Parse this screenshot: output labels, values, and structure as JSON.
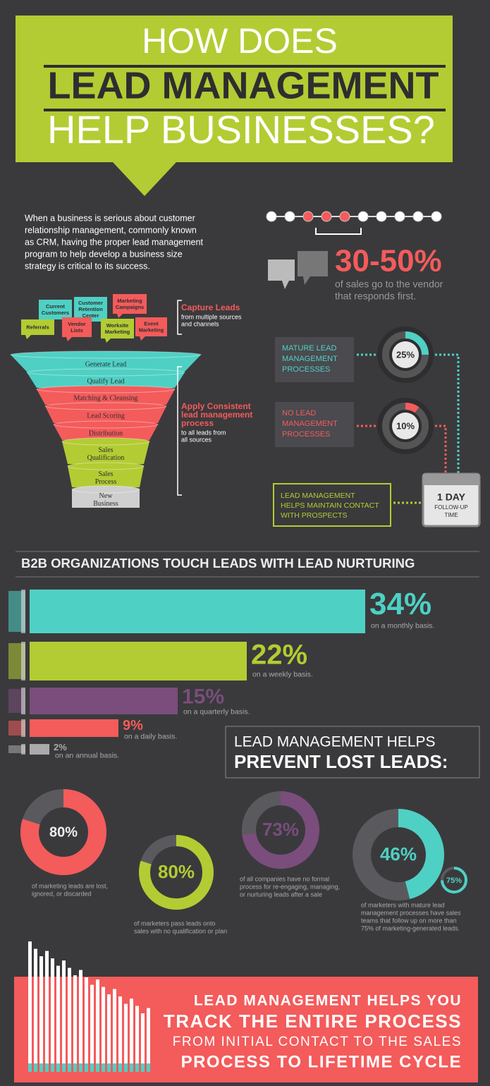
{
  "header": {
    "line1": "HOW DOES",
    "line2": "LEAD MANAGEMENT",
    "line3": "HELP BUSINESSES?"
  },
  "intro": [
    "When a business is serious about customer",
    "relationship management, commonly known",
    "as CRM, having the proper lead management",
    "program to help develop a business size",
    "strategy is critical to its success."
  ],
  "response": {
    "value": "30-50%",
    "caption": [
      "of sales go to the vendor",
      "that responds first."
    ]
  },
  "funnel": {
    "tags": [
      {
        "lines": [
          "Current",
          "Customers"
        ]
      },
      {
        "lines": [
          "Customer",
          "Retention",
          "Center"
        ]
      },
      {
        "lines": [
          "Marketing",
          "Campaigns"
        ]
      },
      {
        "lines": [
          "Referrals"
        ]
      },
      {
        "lines": [
          "Vendor",
          "Lists"
        ]
      },
      {
        "lines": [
          "Worksite",
          "Marketing"
        ]
      },
      {
        "lines": [
          "Event",
          "Marketing"
        ]
      }
    ],
    "stages": [
      [
        "Generate Lead"
      ],
      [
        "Qualify Lead"
      ],
      [
        "Matching & Cleansing"
      ],
      [
        "Lead Scoring"
      ],
      [
        "Distribution"
      ],
      [
        "Sales",
        "Qualification"
      ],
      [
        "Sales",
        "Process"
      ],
      [
        "New",
        "Business"
      ]
    ],
    "capture": {
      "title": "Capture Leads",
      "text": [
        "from multiple sources",
        "and channels"
      ]
    },
    "apply": {
      "title": [
        "Apply Consistent",
        "lead management",
        "process"
      ],
      "text": [
        "to all leads from",
        "all sources"
      ]
    }
  },
  "followup": {
    "items": [
      {
        "label": [
          "MATURE LEAD",
          "MANAGEMENT",
          "PROCESSES"
        ],
        "value": 25,
        "value_label": "25%"
      },
      {
        "label": [
          "NO LEAD",
          "MANAGEMENT",
          "PROCESSES"
        ],
        "value": 10,
        "value_label": "10%"
      }
    ],
    "contact": [
      "LEAD MANAGEMENT",
      "HELPS MAINTAIN CONTACT",
      "WITH PROSPECTS"
    ],
    "day": "1 DAY",
    "day_caption": [
      "FOLLOW-UP",
      "TIME"
    ]
  },
  "nurturing": {
    "title": "B2B ORGANIZATIONS TOUCH LEADS WITH LEAD NURTURING",
    "bars": [
      {
        "value": 34,
        "value_label": "34%",
        "caption": "on a monthly basis."
      },
      {
        "value": 22,
        "value_label": "22%",
        "caption": "on a weekly basis."
      },
      {
        "value": 15,
        "value_label": "15%",
        "caption": "on a quarterly basis."
      },
      {
        "value": 9,
        "value_label": "9%",
        "caption": "on a daily basis."
      },
      {
        "value": 2,
        "value_label": "2%",
        "caption": "on an annual basis."
      }
    ]
  },
  "lost": {
    "title": [
      "LEAD MANAGEMENT HELPS",
      "PREVENT LOST LEADS:"
    ],
    "donuts": [
      {
        "value": 80,
        "value_label": "80%",
        "caption": [
          "of marketing leads are lost,",
          "ignored, or discarded"
        ]
      },
      {
        "value": 80,
        "value_label": "80%",
        "caption": [
          "of marketers pass leads onto",
          "sales with no qualification or plan"
        ]
      },
      {
        "value": 73,
        "value_label": "73%",
        "caption": [
          "of all companies have no formal",
          "process for re-engaging, managing,",
          "or nurturing leads after a sale"
        ]
      },
      {
        "value": 46,
        "value_label": "46%",
        "caption": [
          "of marketers with mature lead",
          "management processes have sales",
          "teams that follow up on more than",
          "75% of marketing-generated leads."
        ],
        "inner": {
          "value": 75,
          "value_label": "75%"
        }
      }
    ]
  },
  "footer": [
    "LEAD MANAGEMENT HELPS YOU",
    "TRACK THE ENTIRE PROCESS",
    "FROM INITIAL CONTACT TO THE SALES",
    "PROCESS TO LIFETIME CYCLE"
  ]
}
